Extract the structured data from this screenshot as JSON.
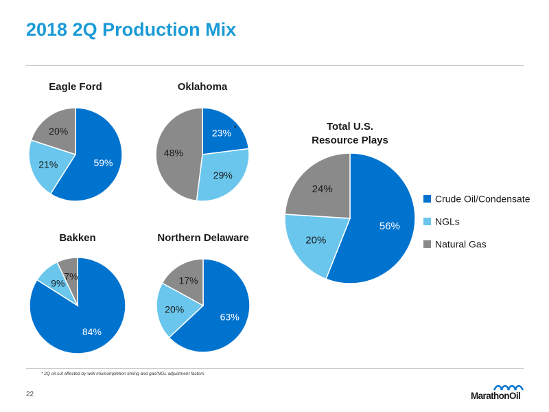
{
  "title": "2018 2Q Production Mix",
  "footnote": "* 2Q oil cut affected by well mix/completion timing and gas/NGL adjustment factors",
  "page_number": "22",
  "logo_text": "MarathonOil",
  "colors": {
    "title": "#1b9ad6",
    "crude": "#0073cf",
    "ngl": "#6ac6ec",
    "gas": "#8a8a8a"
  },
  "legend": [
    {
      "label": "Crude Oil/Condensate",
      "color": "#0073cf"
    },
    {
      "label": "NGLs",
      "color": "#6ac6ec"
    },
    {
      "label": "Natural Gas",
      "color": "#8a8a8a"
    }
  ],
  "chart_data": [
    {
      "type": "pie",
      "title": "Eagle Ford",
      "slices": [
        {
          "label": "Crude Oil/Condensate",
          "value": 59,
          "text": "59%"
        },
        {
          "label": "NGLs",
          "value": 21,
          "text": "21%"
        },
        {
          "label": "Natural Gas",
          "value": 20,
          "text": "20%"
        }
      ]
    },
    {
      "type": "pie",
      "title": "Oklahoma",
      "slices": [
        {
          "label": "Crude Oil/Condensate",
          "value": 23,
          "text": "23%",
          "mark": "*"
        },
        {
          "label": "NGLs",
          "value": 29,
          "text": "29%"
        },
        {
          "label": "Natural Gas",
          "value": 48,
          "text": "48%"
        }
      ]
    },
    {
      "type": "pie",
      "title": "Bakken",
      "slices": [
        {
          "label": "Crude Oil/Condensate",
          "value": 84,
          "text": "84%"
        },
        {
          "label": "NGLs",
          "value": 9,
          "text": "9%"
        },
        {
          "label": "Natural Gas",
          "value": 7,
          "text": "7%"
        }
      ]
    },
    {
      "type": "pie",
      "title": "Northern Delaware",
      "slices": [
        {
          "label": "Crude Oil/Condensate",
          "value": 63,
          "text": "63%"
        },
        {
          "label": "NGLs",
          "value": 20,
          "text": "20%"
        },
        {
          "label": "Natural Gas",
          "value": 17,
          "text": "17%"
        }
      ]
    },
    {
      "type": "pie",
      "title": "Total U.S. Resource Plays",
      "slices": [
        {
          "label": "Crude Oil/Condensate",
          "value": 56,
          "text": "56%"
        },
        {
          "label": "NGLs",
          "value": 20,
          "text": "20%"
        },
        {
          "label": "Natural Gas",
          "value": 24,
          "text": "24%"
        }
      ]
    }
  ]
}
